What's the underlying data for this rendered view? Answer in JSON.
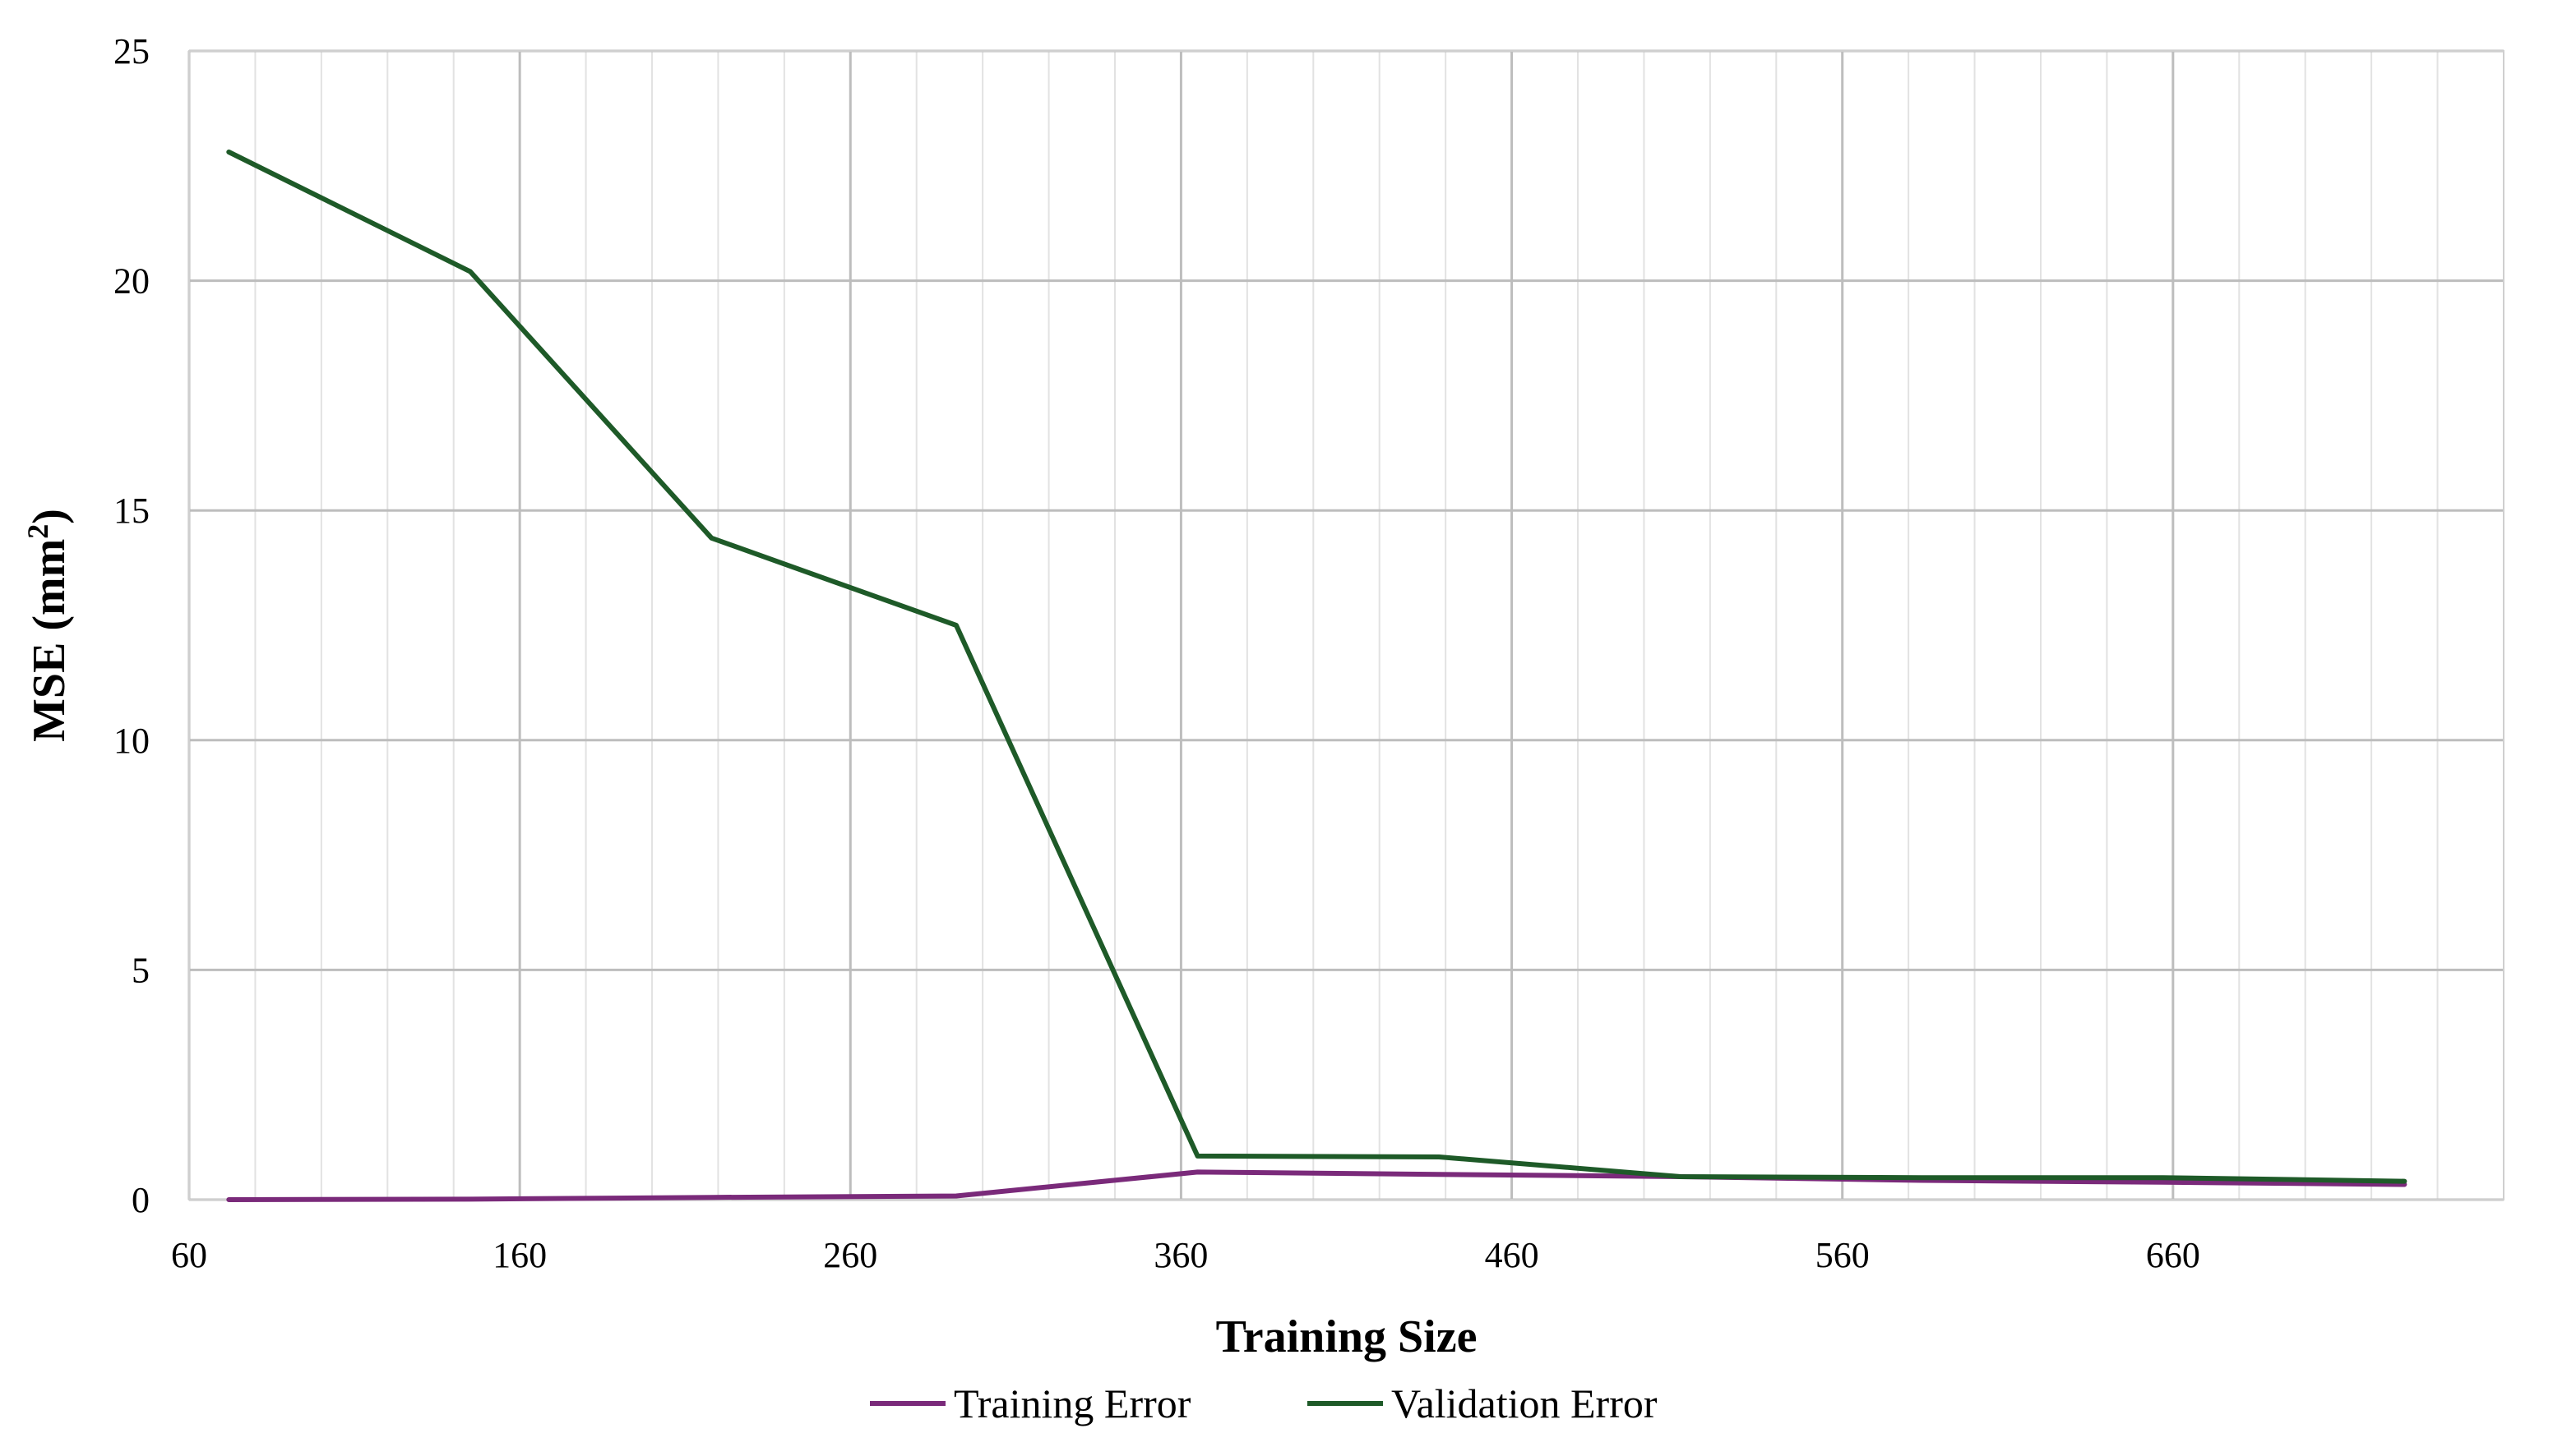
{
  "chart_data": {
    "type": "line",
    "title": "",
    "xlabel": "Training Size",
    "ylabel_main": "MSE (mm",
    "ylabel_sup": "2",
    "ylabel_close": ")",
    "xlim": [
      60,
      760
    ],
    "ylim": [
      0,
      25
    ],
    "x_ticks": [
      60,
      160,
      260,
      360,
      460,
      560,
      660
    ],
    "y_ticks": [
      0,
      5,
      10,
      15,
      20,
      25
    ],
    "x_minor_step": 20,
    "grid": true,
    "legend_position": "bottom",
    "series": [
      {
        "name": "Training Error",
        "color": "#7a2a7a",
        "x": [
          72,
          145,
          218,
          292,
          365,
          438,
          511,
          584,
          657,
          730
        ],
        "y": [
          0.0,
          0.01,
          0.05,
          0.08,
          0.6,
          0.55,
          0.5,
          0.42,
          0.38,
          0.33
        ]
      },
      {
        "name": "Validation Error",
        "color": "#1e5a28",
        "x": [
          72,
          145,
          218,
          292,
          365,
          438,
          511,
          584,
          657,
          730
        ],
        "y": [
          22.8,
          20.2,
          14.4,
          12.5,
          0.95,
          0.93,
          0.5,
          0.48,
          0.48,
          0.4
        ]
      }
    ]
  }
}
